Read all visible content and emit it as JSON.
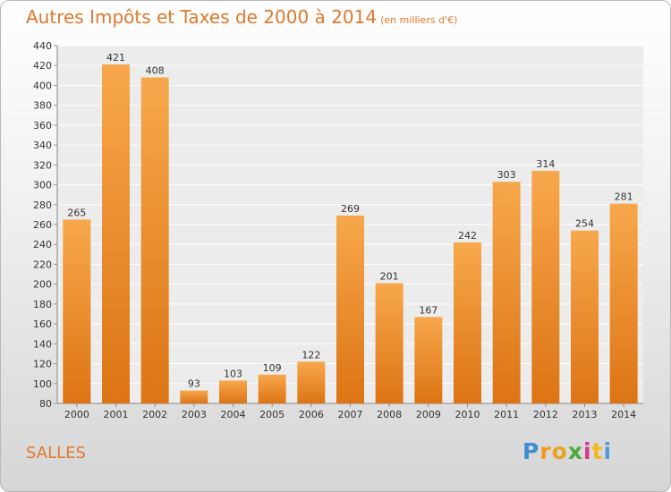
{
  "title": "Autres Impôts et Taxes de 2000 à 2014",
  "unit_label": "(en milliers d'€)",
  "place": "SALLES",
  "logo": {
    "letters": [
      "P",
      "r",
      "o",
      "x",
      "i",
      "t",
      "i"
    ],
    "colors": [
      "#3d8fd1",
      "#f29a1d",
      "#e8a321",
      "#4aaa3c",
      "#d63a8e",
      "#f2b71d",
      "#4f9bd9"
    ]
  },
  "colors": {
    "bar_light": "#f7a84c",
    "bar_dark": "#dc7414",
    "accent": "#e0782b"
  },
  "chart_data": {
    "type": "bar",
    "title": "Autres Impôts et Taxes de 2000 à 2014",
    "subtitle": "(en milliers d'€)",
    "categories": [
      "2000",
      "2001",
      "2002",
      "2003",
      "2004",
      "2005",
      "2006",
      "2007",
      "2008",
      "2009",
      "2010",
      "2011",
      "2012",
      "2013",
      "2014"
    ],
    "values": [
      265,
      421,
      408,
      93,
      103,
      109,
      122,
      269,
      201,
      167,
      242,
      303,
      314,
      254,
      281
    ],
    "ylim": [
      80,
      440
    ],
    "yticks": [
      80,
      100,
      120,
      140,
      160,
      180,
      200,
      220,
      240,
      260,
      280,
      300,
      320,
      340,
      360,
      380,
      400,
      420,
      440
    ],
    "grid": true,
    "legend": "none"
  }
}
